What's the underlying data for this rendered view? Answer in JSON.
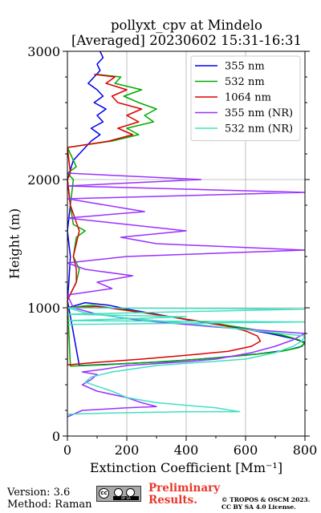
{
  "chart_data": {
    "type": "line",
    "title": [
      "pollyxt_cpv at Mindelo",
      "[Averaged] 20230602 15:31-16:31"
    ],
    "xlabel": "Extinction Coefficient [$Mm^{-1}$]",
    "xlabel_display": "Extinction Coefficient [Mm⁻¹]",
    "ylabel": "Height (m)",
    "xlim": [
      0,
      800
    ],
    "ylim": [
      0,
      3000
    ],
    "xticks": [
      "0",
      "200",
      "400",
      "600",
      "800"
    ],
    "yticks": [
      "0",
      "1000",
      "2000",
      "3000"
    ],
    "xtick_values": [
      0,
      200,
      400,
      600,
      800
    ],
    "ytick_values": [
      0,
      1000,
      2000,
      3000
    ],
    "grid": true,
    "legend_position": "top-right",
    "series": [
      {
        "name": "355 nm",
        "color": "#0000ee",
        "points": [
          [
            0,
            1000
          ],
          [
            60,
            1040
          ],
          [
            140,
            1020
          ],
          [
            200,
            990
          ],
          [
            300,
            950
          ],
          [
            420,
            900
          ],
          [
            560,
            850
          ],
          [
            680,
            800
          ],
          [
            760,
            760
          ],
          [
            800,
            730
          ],
          [
            790,
            700
          ],
          [
            740,
            670
          ],
          [
            640,
            640
          ],
          [
            500,
            610
          ],
          [
            330,
            580
          ],
          [
            150,
            560
          ],
          [
            40,
            550
          ],
          [
            0,
            1060
          ],
          [
            5,
            1200
          ],
          [
            10,
            1400
          ],
          [
            0,
            1600
          ],
          [
            10,
            1800
          ],
          [
            0,
            2000
          ],
          [
            20,
            2150
          ],
          [
            60,
            2250
          ],
          [
            80,
            2300
          ],
          [
            110,
            2350
          ],
          [
            80,
            2400
          ],
          [
            120,
            2450
          ],
          [
            100,
            2500
          ],
          [
            130,
            2550
          ],
          [
            90,
            2600
          ],
          [
            120,
            2650
          ],
          [
            100,
            2700
          ],
          [
            70,
            2750
          ],
          [
            90,
            2800
          ],
          [
            110,
            2850
          ],
          [
            100,
            2900
          ],
          [
            120,
            2950
          ],
          [
            110,
            3000
          ]
        ]
      },
      {
        "name": "532 nm",
        "color": "#00aa00",
        "points": [
          [
            0,
            1000
          ],
          [
            80,
            1020
          ],
          [
            180,
            990
          ],
          [
            290,
            950
          ],
          [
            400,
            910
          ],
          [
            520,
            870
          ],
          [
            630,
            830
          ],
          [
            720,
            790
          ],
          [
            780,
            750
          ],
          [
            800,
            720
          ],
          [
            780,
            690
          ],
          [
            720,
            660
          ],
          [
            600,
            630
          ],
          [
            450,
            600
          ],
          [
            280,
            575
          ],
          [
            120,
            555
          ],
          [
            10,
            545
          ],
          [
            0,
            1060
          ],
          [
            30,
            1200
          ],
          [
            40,
            1300
          ],
          [
            20,
            1400
          ],
          [
            30,
            1550
          ],
          [
            60,
            1600
          ],
          [
            20,
            1650
          ],
          [
            10,
            1800
          ],
          [
            20,
            2000
          ],
          [
            0,
            2050
          ],
          [
            30,
            2100
          ],
          [
            0,
            2250
          ],
          [
            150,
            2300
          ],
          [
            240,
            2350
          ],
          [
            200,
            2400
          ],
          [
            290,
            2450
          ],
          [
            260,
            2500
          ],
          [
            300,
            2550
          ],
          [
            240,
            2600
          ],
          [
            190,
            2650
          ],
          [
            250,
            2700
          ],
          [
            160,
            2750
          ],
          [
            180,
            2800
          ],
          [
            100,
            2820
          ]
        ]
      },
      {
        "name": "1064 nm",
        "color": "#dd0000",
        "points": [
          [
            0,
            1000
          ],
          [
            100,
            1010
          ],
          [
            200,
            980
          ],
          [
            320,
            940
          ],
          [
            430,
            900
          ],
          [
            530,
            860
          ],
          [
            600,
            820
          ],
          [
            640,
            780
          ],
          [
            650,
            740
          ],
          [
            620,
            700
          ],
          [
            540,
            660
          ],
          [
            400,
            630
          ],
          [
            250,
            600
          ],
          [
            100,
            575
          ],
          [
            0,
            555
          ],
          [
            0,
            1060
          ],
          [
            30,
            1200
          ],
          [
            30,
            1300
          ],
          [
            20,
            1400
          ],
          [
            40,
            1600
          ],
          [
            10,
            1800
          ],
          [
            0,
            2000
          ],
          [
            10,
            2050
          ],
          [
            0,
            2250
          ],
          [
            140,
            2300
          ],
          [
            220,
            2350
          ],
          [
            170,
            2400
          ],
          [
            240,
            2450
          ],
          [
            200,
            2500
          ],
          [
            250,
            2550
          ],
          [
            170,
            2600
          ],
          [
            150,
            2650
          ],
          [
            200,
            2700
          ],
          [
            130,
            2750
          ],
          [
            160,
            2800
          ],
          [
            90,
            2820
          ]
        ]
      },
      {
        "name": "355 nm (NR)",
        "color": "#9b30ff",
        "points": [
          [
            0,
            150
          ],
          [
            50,
            200
          ],
          [
            200,
            220
          ],
          [
            300,
            230
          ],
          [
            250,
            260
          ],
          [
            200,
            300
          ],
          [
            100,
            350
          ],
          [
            50,
            400
          ],
          [
            80,
            440
          ],
          [
            100,
            480
          ],
          [
            50,
            500
          ],
          [
            120,
            520
          ],
          [
            200,
            550
          ],
          [
            400,
            580
          ],
          [
            500,
            600
          ],
          [
            620,
            650
          ],
          [
            700,
            700
          ],
          [
            760,
            750
          ],
          [
            800,
            800
          ],
          [
            500,
            850
          ],
          [
            250,
            900
          ],
          [
            100,
            950
          ],
          [
            20,
            1000
          ],
          [
            0,
            1100
          ],
          [
            150,
            1150
          ],
          [
            100,
            1200
          ],
          [
            220,
            1250
          ],
          [
            60,
            1300
          ],
          [
            0,
            1350
          ],
          [
            200,
            1400
          ],
          [
            800,
            1450
          ],
          [
            300,
            1500
          ],
          [
            180,
            1550
          ],
          [
            400,
            1600
          ],
          [
            0,
            1700
          ],
          [
            260,
            1750
          ],
          [
            0,
            1850
          ],
          [
            800,
            1900
          ],
          [
            0,
            1950
          ],
          [
            450,
            2000
          ],
          [
            0,
            2050
          ]
        ]
      },
      {
        "name": "532 nm (NR)",
        "color": "#40e0c0",
        "points": [
          [
            0,
            170
          ],
          [
            150,
            180
          ],
          [
            400,
            190
          ],
          [
            580,
            190
          ],
          [
            500,
            220
          ],
          [
            300,
            260
          ],
          [
            200,
            300
          ],
          [
            150,
            350
          ],
          [
            60,
            420
          ],
          [
            80,
            460
          ],
          [
            150,
            500
          ],
          [
            300,
            550
          ],
          [
            480,
            580
          ],
          [
            600,
            600
          ],
          [
            700,
            650
          ],
          [
            760,
            700
          ],
          [
            790,
            740
          ],
          [
            800,
            780
          ],
          [
            600,
            830
          ],
          [
            400,
            880
          ],
          [
            200,
            920
          ],
          [
            60,
            960
          ],
          [
            0,
            1000
          ],
          [
            800,
            990
          ],
          [
            0,
            950
          ],
          [
            400,
            930
          ],
          [
            0,
            900
          ],
          [
            800,
            890
          ],
          [
            0,
            870
          ]
        ]
      }
    ]
  },
  "footer": {
    "version": "Version: 3.6",
    "method": "Method: Raman",
    "license_badge": "BY SA",
    "preliminary_line1": "Preliminary",
    "preliminary_line2": "Results.",
    "copyright_line1": "© TROPOS & OSCM 2023.",
    "copyright_line2": "CC BY SA 4.0 License."
  }
}
